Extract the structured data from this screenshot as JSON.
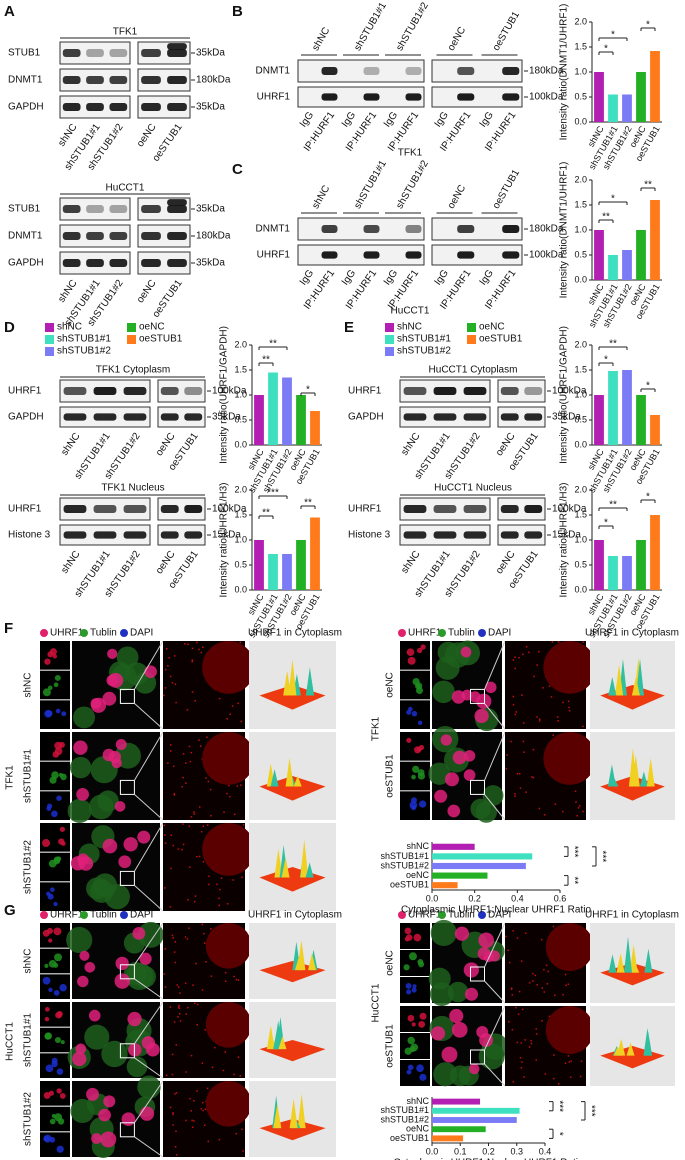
{
  "groups": [
    "shNC",
    "shSTUB1#1",
    "shSTUB1#2",
    "oeNC",
    "oeSTUB1"
  ],
  "A": {
    "letter": "A",
    "blots": [
      {
        "cell": "TFK1",
        "rows": [
          "STUB1",
          "DNMT1",
          "GAPDH"
        ],
        "markers": [
          "35kDa",
          "180kDa",
          "35kDa"
        ]
      },
      {
        "cell": "HuCCT1",
        "rows": [
          "STUB1",
          "DNMT1",
          "GAPDH"
        ],
        "markers": [
          "35kDa",
          "180kDa",
          "35kDa"
        ]
      }
    ]
  },
  "B": {
    "letter": "B",
    "rows": [
      "DNMT1",
      "UHRF1"
    ],
    "markers": [
      "180kDa",
      "100kDa"
    ],
    "ip": [
      "IgG",
      "IP:HURF1"
    ],
    "cell": "TFK1"
  },
  "C": {
    "letter": "C",
    "rows": [
      "DNMT1",
      "UHRF1"
    ],
    "markers": [
      "180kDa",
      "100kDa"
    ],
    "ip": [
      "IgG",
      "IP:HURF1"
    ],
    "cell": "HuCCT1"
  },
  "D": {
    "letter": "D",
    "blots": [
      {
        "title": "TFK1 Cytoplasm",
        "rows": [
          "UHRF1",
          "GAPDH"
        ],
        "markers": [
          "100kDa",
          "35kDa"
        ]
      },
      {
        "title": "TFK1 Nucleus",
        "rows": [
          "UHRF1",
          "Histone 3"
        ],
        "markers": [
          "100kDa",
          "15kDa"
        ]
      }
    ]
  },
  "E": {
    "letter": "E",
    "blots": [
      {
        "title": "HuCCT1 Cytoplasm",
        "rows": [
          "UHRF1",
          "GAPDH"
        ],
        "markers": [
          "100kDa",
          "35kDa"
        ]
      },
      {
        "title": "HuCCT1 Nucleus",
        "rows": [
          "UHRF1",
          "Histone 3"
        ],
        "markers": [
          "100kDa",
          "15kDa"
        ]
      }
    ]
  },
  "F": {
    "letter": "F",
    "channels": [
      "UHRF1",
      "Tublin",
      "DAPI"
    ],
    "zoom_title": "UHRF1 in Cytoplasm",
    "cell": "TFK1"
  },
  "G": {
    "letter": "G",
    "channels": [
      "UHRF1",
      "Tublin",
      "DAPI"
    ],
    "zoom_title": "UHRF1 in Cytoplasm",
    "cell": "HuCCT1"
  },
  "chart_data": [
    {
      "type": "bar",
      "ylabel": "Intensity ratio(DNMT1/UHRF1)",
      "categories": [
        "shNC",
        "shSTUB1#1",
        "shSTUB1#2",
        "oeNC",
        "oeSTUB1"
      ],
      "values": [
        1.0,
        0.55,
        0.55,
        1.0,
        1.42
      ],
      "colors": [
        "#b21fb2",
        "#3fe0c0",
        "#7b7bf5",
        "#24b024",
        "#ff7a1a"
      ],
      "ylim": [
        0,
        2
      ],
      "yticks": [
        {
          "value": 0,
          "label": "0.0"
        },
        0.5,
        {
          "value": 1,
          "label": "1.0"
        },
        1.5,
        {
          "value": 2,
          "label": "2.0"
        }
      ],
      "annotations": [
        "*",
        "*",
        "*"
      ]
    },
    {
      "type": "bar",
      "ylabel": "Intensity ratio(DNMT1/UHRF1)",
      "categories": [
        "shNC",
        "shSTUB1#1",
        "shSTUB1#2",
        "oeNC",
        "oeSTUB1"
      ],
      "values": [
        1.0,
        0.5,
        0.6,
        1.0,
        1.6
      ],
      "colors": [
        "#b21fb2",
        "#3fe0c0",
        "#7b7bf5",
        "#24b024",
        "#ff7a1a"
      ],
      "ylim": [
        0,
        2
      ],
      "yticks": [
        {
          "value": 0,
          "label": "0.0"
        },
        0.5,
        {
          "value": 1,
          "label": "1.0"
        },
        1.5,
        {
          "value": 2,
          "label": "2.0"
        }
      ],
      "annotations": [
        "**",
        "*",
        "**"
      ]
    },
    {
      "type": "bar",
      "ylabel": "Intensity ratio(UHRF1/GAPDH)",
      "categories": [
        "shNC",
        "shSTUB1#1",
        "shSTUB1#2",
        "oeNC",
        "oeSTUB1"
      ],
      "values": [
        1.0,
        1.45,
        1.35,
        1.0,
        0.68
      ],
      "colors": [
        "#b21fb2",
        "#3fe0c0",
        "#7b7bf5",
        "#24b024",
        "#ff7a1a"
      ],
      "ylim": [
        0,
        2
      ],
      "yticks": [
        {
          "value": 0,
          "label": "0.0"
        },
        0.5,
        {
          "value": 1,
          "label": "1.0"
        },
        1.5,
        {
          "value": 2,
          "label": "2.0"
        }
      ],
      "annotations": [
        "**",
        "**",
        "*"
      ],
      "legend": true
    },
    {
      "type": "bar",
      "ylabel": "Intensity ratio(UHRF1/H3)",
      "categories": [
        "shNC",
        "shSTUB1#1",
        "shSTUB1#2",
        "oeNC",
        "oeSTUB1"
      ],
      "values": [
        1.0,
        0.72,
        0.72,
        1.0,
        1.45
      ],
      "colors": [
        "#b21fb2",
        "#3fe0c0",
        "#7b7bf5",
        "#24b024",
        "#ff7a1a"
      ],
      "ylim": [
        0,
        2
      ],
      "yticks": [
        {
          "value": 0,
          "label": "0.0"
        },
        0.5,
        {
          "value": 1,
          "label": "1.0"
        },
        1.5,
        {
          "value": 2,
          "label": "2.0"
        }
      ],
      "annotations": [
        "***",
        "**",
        "**"
      ]
    },
    {
      "type": "bar",
      "ylabel": "Intensity ratio(UHRF1/GAPDH)",
      "categories": [
        "shNC",
        "shSTUB1#1",
        "shSTUB1#2",
        "oeNC",
        "oeSTUB1"
      ],
      "values": [
        1.0,
        1.48,
        1.5,
        1.0,
        0.6
      ],
      "colors": [
        "#b21fb2",
        "#3fe0c0",
        "#7b7bf5",
        "#24b024",
        "#ff7a1a"
      ],
      "ylim": [
        0,
        2
      ],
      "yticks": [
        {
          "value": 0,
          "label": "0.0"
        },
        0.5,
        {
          "value": 1,
          "label": "1.0"
        },
        1.5,
        {
          "value": 2,
          "label": "2.0"
        }
      ],
      "annotations": [
        "**",
        "*",
        "*"
      ],
      "legend": true
    },
    {
      "type": "bar",
      "ylabel": "Intensity ratio(UHRF1/H3)",
      "categories": [
        "shNC",
        "shSTUB1#1",
        "shSTUB1#2",
        "oeNC",
        "oeSTUB1"
      ],
      "values": [
        1.0,
        0.68,
        0.68,
        1.0,
        1.5
      ],
      "colors": [
        "#b21fb2",
        "#3fe0c0",
        "#7b7bf5",
        "#24b024",
        "#ff7a1a"
      ],
      "ylim": [
        0,
        2
      ],
      "yticks": [
        {
          "value": 0,
          "label": "0.0"
        },
        0.5,
        {
          "value": 1,
          "label": "1.0"
        },
        1.5,
        {
          "value": 2,
          "label": "2.0"
        }
      ],
      "annotations": [
        "**",
        "*",
        "*"
      ]
    },
    {
      "type": "barh",
      "xlabel": "Cytoplasmic UHRF1:Nuclear UHRF1 Ratio",
      "categories": [
        "shNC",
        "shSTUB1#1",
        "shSTUB1#2",
        "oeNC",
        "oeSTUB1"
      ],
      "values": [
        0.2,
        0.47,
        0.44,
        0.26,
        0.12
      ],
      "colors": [
        "#b21fb2",
        "#3fe0c0",
        "#7b7bf5",
        "#24b024",
        "#ff7a1a"
      ],
      "xlim": [
        0,
        0.6
      ],
      "xticks": [
        {
          "value": 0,
          "label": "0.0"
        },
        0.2,
        0.4,
        0.6
      ],
      "annotations": [
        "***",
        "***",
        "**"
      ]
    },
    {
      "type": "barh",
      "xlabel": "Cytoplasmic UHRF1:Nuclear UHRF1 Ratio",
      "categories": [
        "shNC",
        "shSTUB1#1",
        "shSTUB1#2",
        "oeNC",
        "oeSTUB1"
      ],
      "values": [
        0.17,
        0.31,
        0.3,
        0.19,
        0.11
      ],
      "colors": [
        "#b21fb2",
        "#3fe0c0",
        "#7b7bf5",
        "#24b024",
        "#ff7a1a"
      ],
      "xlim": [
        0,
        0.4
      ],
      "xticks": [
        {
          "value": 0,
          "label": "0.0"
        },
        0.1,
        0.2,
        0.3,
        0.4
      ],
      "annotations": [
        "***",
        "***",
        "*"
      ]
    }
  ]
}
